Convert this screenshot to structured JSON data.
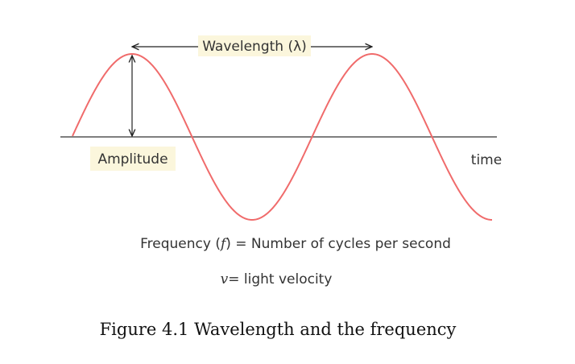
{
  "labels": {
    "wavelength": "Wavelength (λ)",
    "amplitude": "Amplitude",
    "time_axis": "time"
  },
  "formulas": {
    "frequency_prefix": "Frequency (",
    "frequency_symbol": "f",
    "frequency_suffix": ") = Number of cycles per second",
    "velocity_symbol": "v",
    "velocity_suffix": "= light velocity"
  },
  "caption": "Figure 4.1 Wavelength and the frequency",
  "colors": {
    "wave": "#f06b6b",
    "axis": "#555555",
    "arrow": "#222222",
    "label_highlight": "#fbf6dc",
    "text": "#333333"
  }
}
